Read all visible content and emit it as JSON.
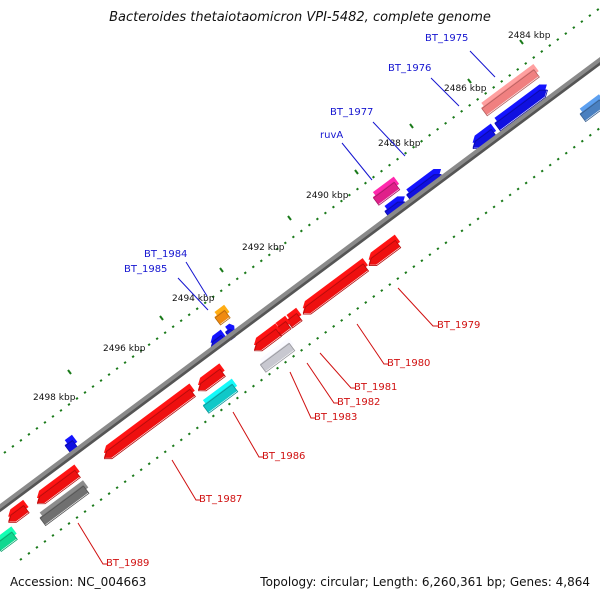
{
  "title": "Bacteroides thetaiotaomicron VPI-5482, complete genome",
  "footer": {
    "accession_label": "Accession:",
    "accession": "NC_004663",
    "topology_label": "Topology:",
    "topology": "circular",
    "length_label": "Length:",
    "length": "6,260,361 bp",
    "genes_label": "Genes:",
    "genes": "4,864"
  },
  "colors": {
    "backbone": "#8a8a8a",
    "forward": "#1010e0",
    "reverse": "#ee1010",
    "tick": "#1a7a1a",
    "label_forward": "#1515d0",
    "label_reverse": "#d01010"
  },
  "scale_labels": [
    "2484 kbp",
    "2486 kbp",
    "2488 kbp",
    "2490 kbp",
    "2492 kbp",
    "2494 kbp",
    "2496 kbp",
    "2498 kbp"
  ],
  "forward_gene_labels": [
    "BT_1975",
    "BT_1976",
    "BT_1977",
    "ruvA",
    "BT_1984",
    "BT_1985"
  ],
  "reverse_gene_labels": [
    "BT_1979",
    "BT_1980",
    "BT_1981",
    "BT_1982",
    "BT_1983",
    "BT_1986",
    "BT_1987",
    "BT_1989"
  ],
  "feature_colors": [
    "#f08080",
    "#1010e0",
    "#ee1010",
    "#e0208a",
    "#f08a10",
    "#10c8c8",
    "#c8c8d0",
    "#707070",
    "#10d890",
    "#4a80c0"
  ]
}
